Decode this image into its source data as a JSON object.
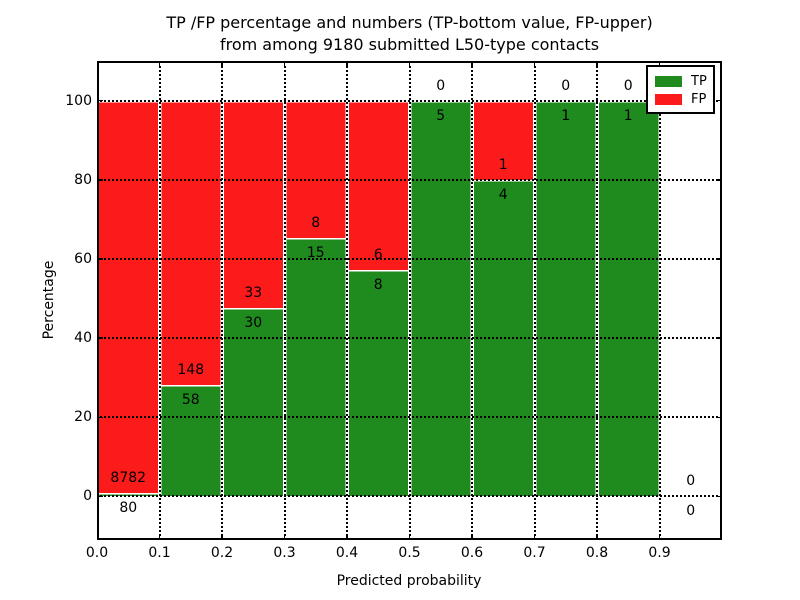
{
  "chart_data": {
    "type": "bar",
    "stacked": true,
    "title_lines": [
      "TP /FP percentage and numbers (TP-bottom value, FP-upper)",
      "from among 9180 submitted L50-type contacts"
    ],
    "xlabel": "Predicted probability",
    "ylabel": "Percentage",
    "xlim": [
      0.0,
      1.0
    ],
    "ylim": [
      -11,
      110
    ],
    "x_ticks": [
      "0.0",
      "0.1",
      "0.2",
      "0.3",
      "0.4",
      "0.5",
      "0.6",
      "0.7",
      "0.8",
      "0.9"
    ],
    "y_ticks": [
      "0",
      "20",
      "40",
      "60",
      "80",
      "100"
    ],
    "y_tick_values": [
      0,
      20,
      40,
      60,
      80,
      100
    ],
    "grid": true,
    "total_contacts": 9180,
    "legend": {
      "position": "upper right",
      "entries": [
        {
          "label": "TP",
          "color": "#1f8b1f"
        },
        {
          "label": "FP",
          "color": "#fb1b1b"
        }
      ]
    },
    "bins": [
      {
        "range": [
          0.0,
          0.1
        ],
        "tp": 80,
        "fp": 8782,
        "tp_pct": 0.9,
        "fp_pct": 99.1
      },
      {
        "range": [
          0.1,
          0.2
        ],
        "tp": 58,
        "fp": 148,
        "tp_pct": 28.2,
        "fp_pct": 71.8
      },
      {
        "range": [
          0.2,
          0.3
        ],
        "tp": 30,
        "fp": 33,
        "tp_pct": 47.6,
        "fp_pct": 52.4
      },
      {
        "range": [
          0.3,
          0.4
        ],
        "tp": 15,
        "fp": 8,
        "tp_pct": 65.2,
        "fp_pct": 34.8
      },
      {
        "range": [
          0.4,
          0.5
        ],
        "tp": 8,
        "fp": 6,
        "tp_pct": 57.1,
        "fp_pct": 42.9
      },
      {
        "range": [
          0.5,
          0.6
        ],
        "tp": 5,
        "fp": 0,
        "tp_pct": 100,
        "fp_pct": 0
      },
      {
        "range": [
          0.6,
          0.7
        ],
        "tp": 4,
        "fp": 1,
        "tp_pct": 80,
        "fp_pct": 20
      },
      {
        "range": [
          0.7,
          0.8
        ],
        "tp": 1,
        "fp": 0,
        "tp_pct": 100,
        "fp_pct": 0
      },
      {
        "range": [
          0.8,
          0.9
        ],
        "tp": 1,
        "fp": 0,
        "tp_pct": 100,
        "fp_pct": 0
      },
      {
        "range": [
          0.9,
          1.0
        ],
        "tp": 0,
        "fp": 0,
        "tp_pct": 0,
        "fp_pct": 0
      }
    ]
  },
  "colors": {
    "tp": "#1f8b1f",
    "fp": "#fb1b1b",
    "background": "#ffffff",
    "text": "#000000",
    "grid": "#000000"
  }
}
